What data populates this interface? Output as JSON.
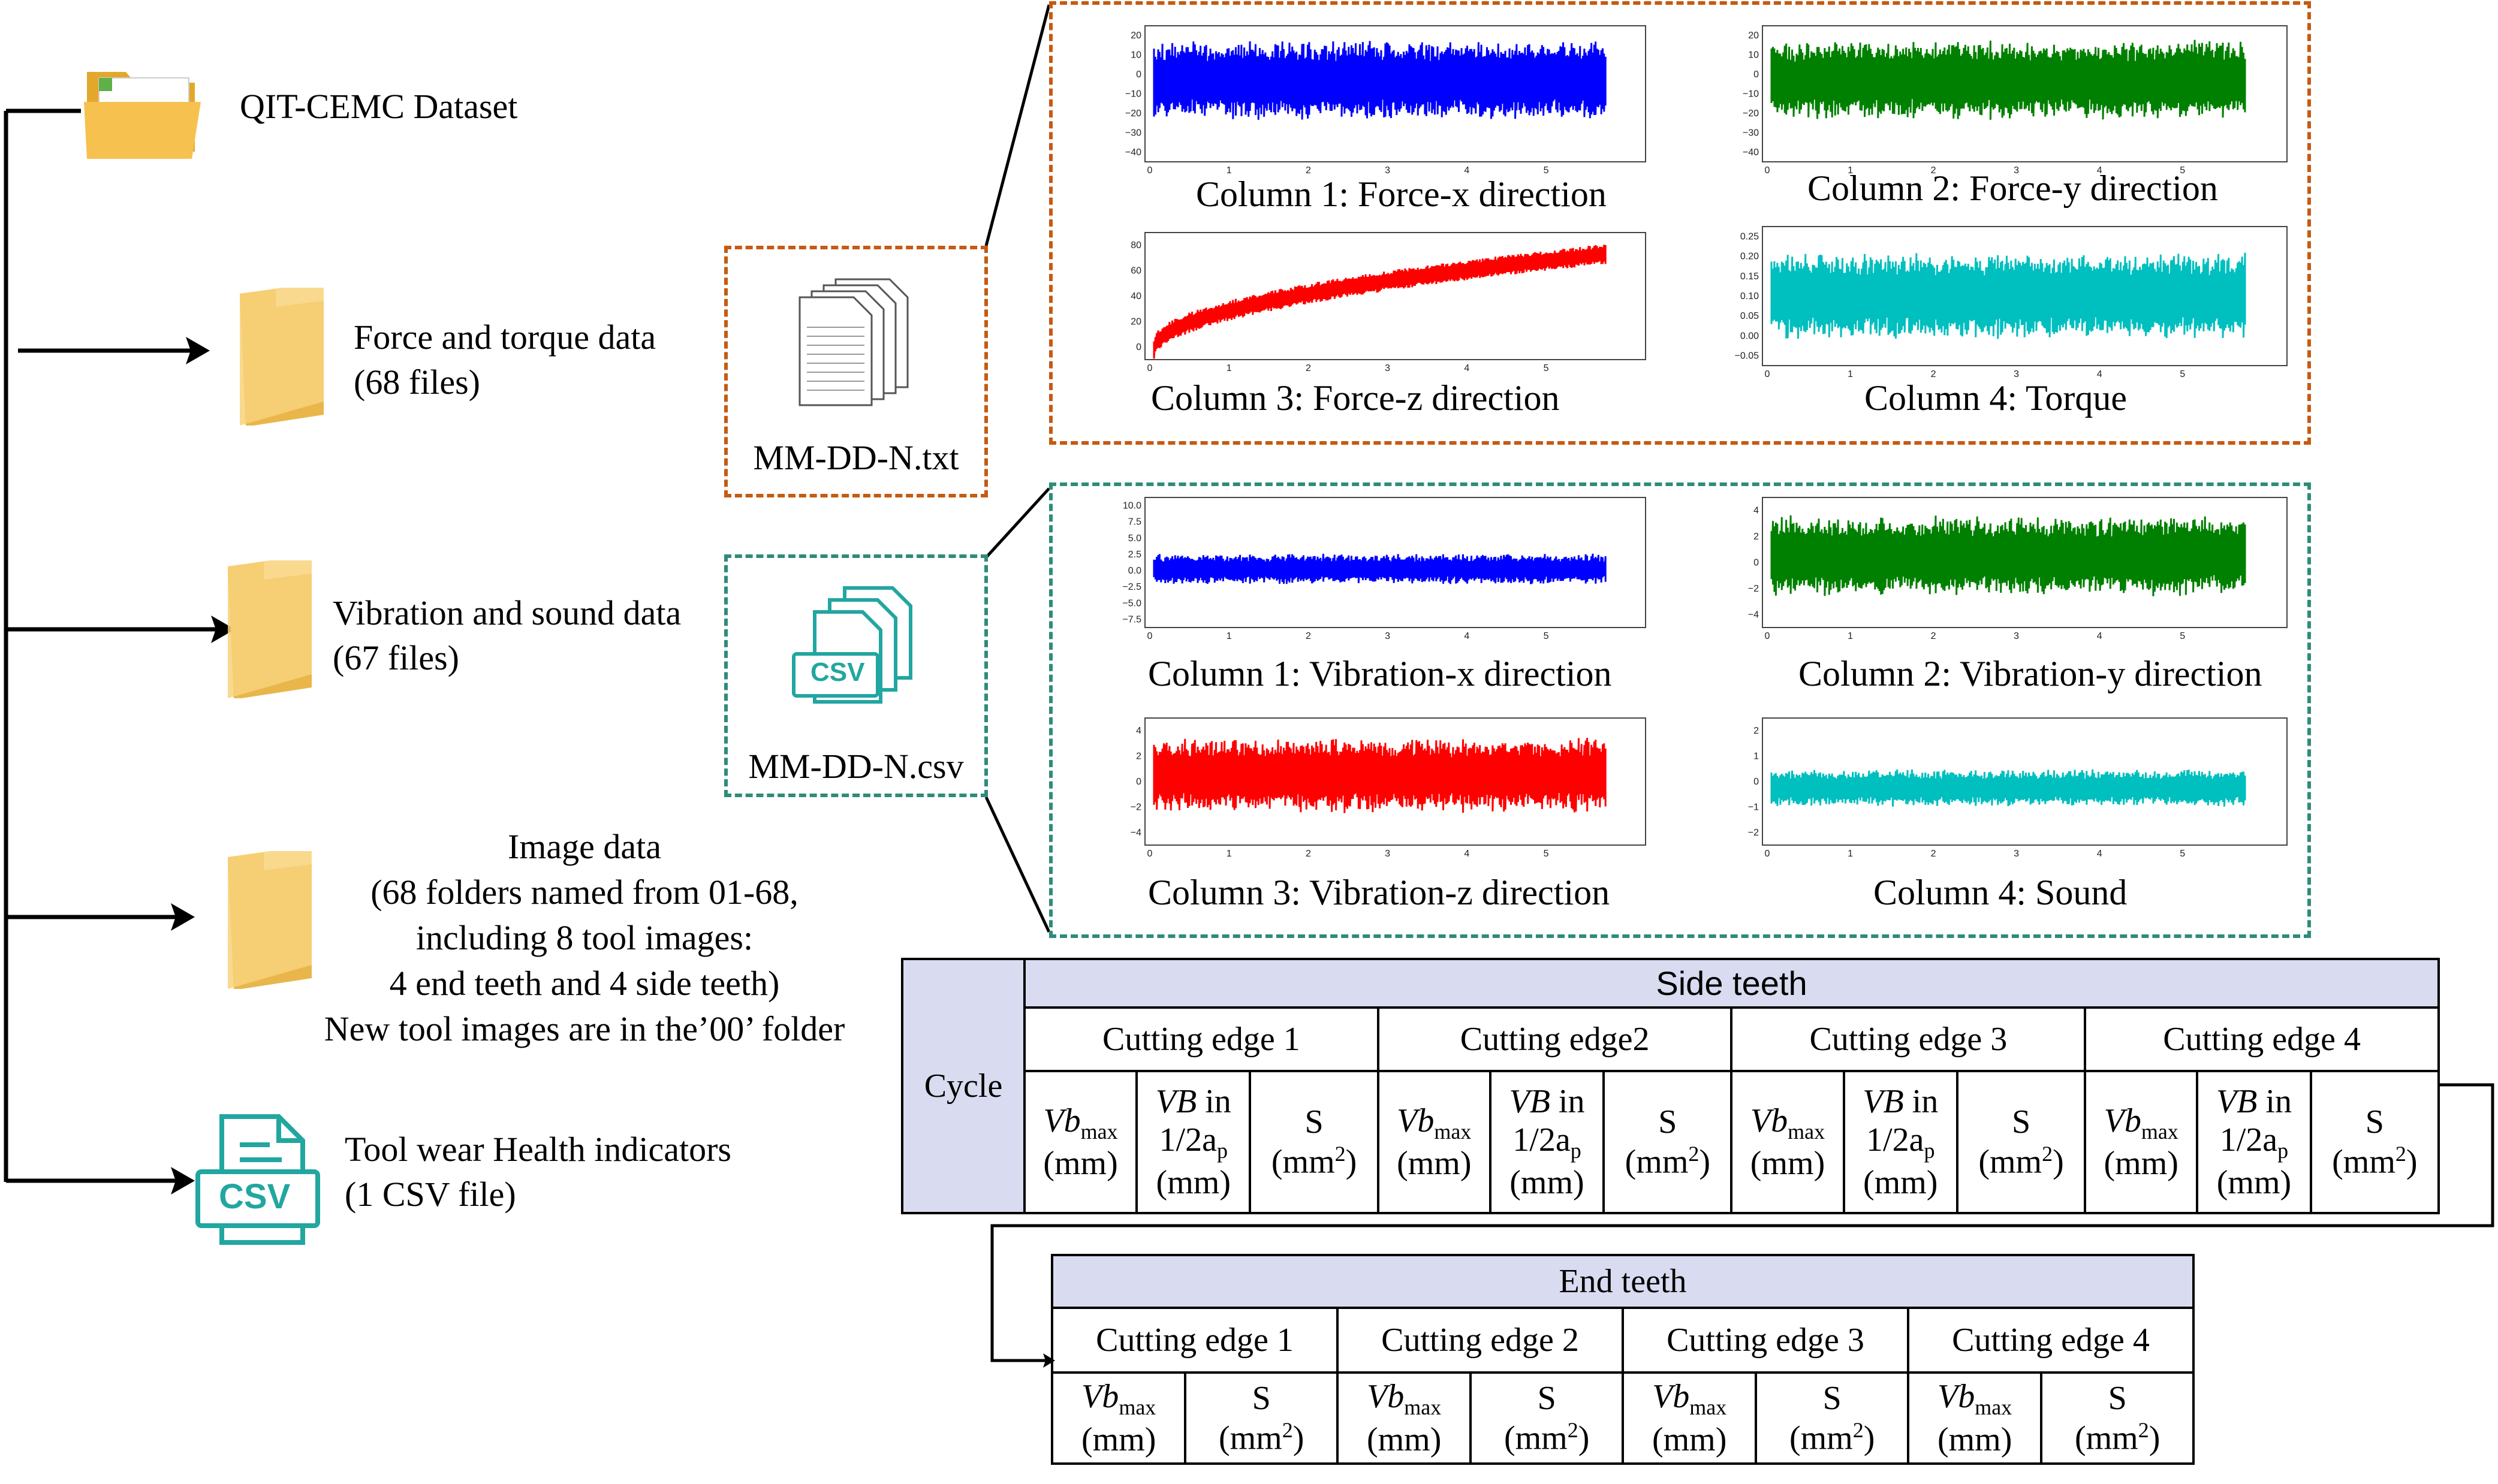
{
  "root": {
    "label": "QIT-CEMC Dataset"
  },
  "branches": [
    {
      "line1": "Force  and torque data",
      "line2": "(68 files)"
    },
    {
      "line1": "Vibration and sound data",
      "line2": "(67 files)"
    },
    {
      "lines": [
        "Image data",
        "(68 folders named from 01-68,",
        "including 8 tool images:",
        "4 end teeth and 4 side teeth)",
        "New tool images are in the’00’ folder"
      ]
    },
    {
      "line1": "Tool wear Health indicators",
      "line2": "(1 CSV file)"
    }
  ],
  "files": {
    "txt": {
      "name": "MM-DD-N.txt"
    },
    "csv": {
      "name": "MM-DD-N.csv",
      "badge": "CSV"
    },
    "hi_badge": "CSV"
  },
  "force_panel": {
    "colors": {
      "border": "#c55a11"
    },
    "plots": [
      {
        "caption": "Column 1: Force-x direction",
        "color": "#0000ff",
        "yticks": [
          "20",
          "10",
          "0",
          "−10",
          "−20",
          "−30",
          "−40"
        ],
        "xticks": [
          "0",
          "1",
          "2",
          "3",
          "4",
          "5"
        ]
      },
      {
        "caption": "Column 2: Force-y direction",
        "color": "#008000",
        "yticks": [
          "20",
          "10",
          "0",
          "−10",
          "−20",
          "−30",
          "−40"
        ],
        "xticks": [
          "0",
          "1",
          "2",
          "3",
          "4",
          "5"
        ]
      },
      {
        "caption": "Column 3: Force-z direction",
        "color": "#ff0000",
        "yticks": [
          "80",
          "60",
          "40",
          "20",
          "0"
        ],
        "xticks": [
          "0",
          "1",
          "2",
          "3",
          "4",
          "5"
        ]
      },
      {
        "caption": "Column 4: Torque",
        "color": "#00bfbf",
        "yticks": [
          "0.25",
          "0.20",
          "0.15",
          "0.10",
          "0.05",
          "0.00",
          "−0.05"
        ],
        "xticks": [
          "0",
          "1",
          "2",
          "3",
          "4",
          "5"
        ]
      }
    ]
  },
  "vibration_panel": {
    "colors": {
      "border": "#2e8b7a"
    },
    "plots": [
      {
        "caption": "Column 1: Vibration-x direction",
        "color": "#0000ff",
        "yticks": [
          "10.0",
          "7.5",
          "5.0",
          "2.5",
          "0.0",
          "−2.5",
          "−5.0",
          "−7.5"
        ],
        "xticks": [
          "0",
          "1",
          "2",
          "3",
          "4",
          "5"
        ]
      },
      {
        "caption": "Column 2: Vibration-y direction",
        "color": "#008000",
        "yticks": [
          "4",
          "2",
          "0",
          "−2",
          "−4"
        ],
        "xticks": [
          "0",
          "1",
          "2",
          "3",
          "4",
          "5"
        ]
      },
      {
        "caption": "Column 3: Vibration-z direction",
        "color": "#ff0000",
        "yticks": [
          "4",
          "2",
          "0",
          "−2",
          "−4"
        ],
        "xticks": [
          "0",
          "1",
          "2",
          "3",
          "4",
          "5"
        ]
      },
      {
        "caption": "Column 4: Sound",
        "color": "#00bfbf",
        "yticks": [
          "2",
          "1",
          "0",
          "−1",
          "−2"
        ],
        "xticks": [
          "0",
          "1",
          "2",
          "3",
          "4",
          "5"
        ]
      }
    ]
  },
  "side_table": {
    "cycle": "Cycle",
    "title": "Side teeth",
    "edges": [
      "Cutting edge 1",
      "Cutting edge2",
      "Cutting edge 3",
      "Cutting edge 4"
    ],
    "vb_var": "Vb",
    "vb_sub": "max",
    "unit_mm": "(mm)",
    "vb_half_a": "VB",
    "vb_half_b": " in",
    "vb_half_c": "1/2a",
    "vb_half_sub": "p",
    "s_label": "S",
    "s_unit": "(mm",
    "s_sup": "2",
    "s_close": ")"
  },
  "end_table": {
    "title": "End teeth",
    "edges": [
      "Cutting edge 1",
      "Cutting edge 2",
      "Cutting edge 3",
      "Cutting edge 4"
    ],
    "vb_var": "Vb",
    "vb_sub": "max",
    "unit_mm": "(mm)",
    "s_label": "S",
    "s_unit": "(mm",
    "s_sup": "2",
    "s_close": ")"
  }
}
